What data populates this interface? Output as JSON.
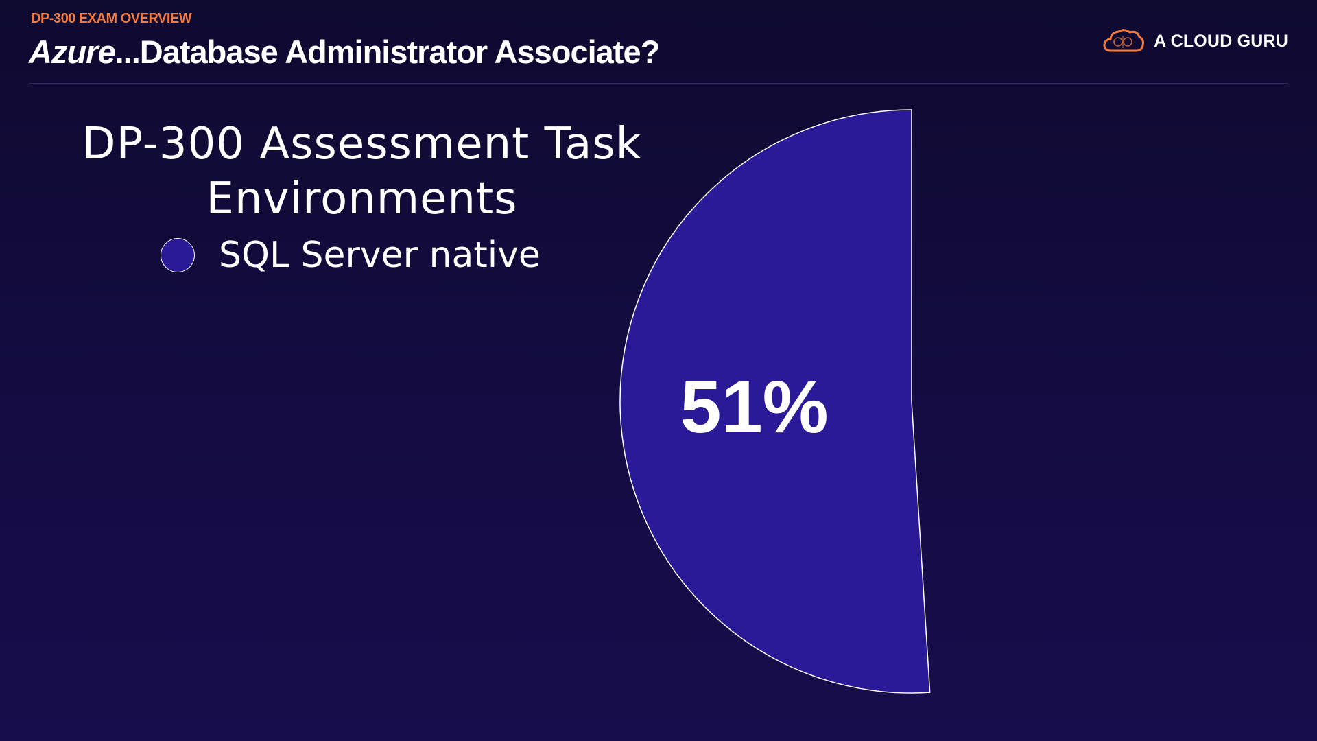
{
  "header": {
    "eyebrow": "DP-300 EXAM OVERVIEW",
    "title_italic": "Azure",
    "title_rest": "...Database Administrator Associate?"
  },
  "brand": {
    "name": "A CLOUD GURU",
    "logo_icon": "cloud-icon",
    "logo_color": "#f27a3d"
  },
  "chart_data": {
    "type": "pie",
    "title": "DP-300 Assessment Task Environments",
    "categories": [
      "SQL Server native"
    ],
    "values": [
      51
    ],
    "value_labels": [
      "51%"
    ],
    "colors": [
      "#2a1a98"
    ],
    "legend_position": "top-left",
    "unit": "%"
  }
}
